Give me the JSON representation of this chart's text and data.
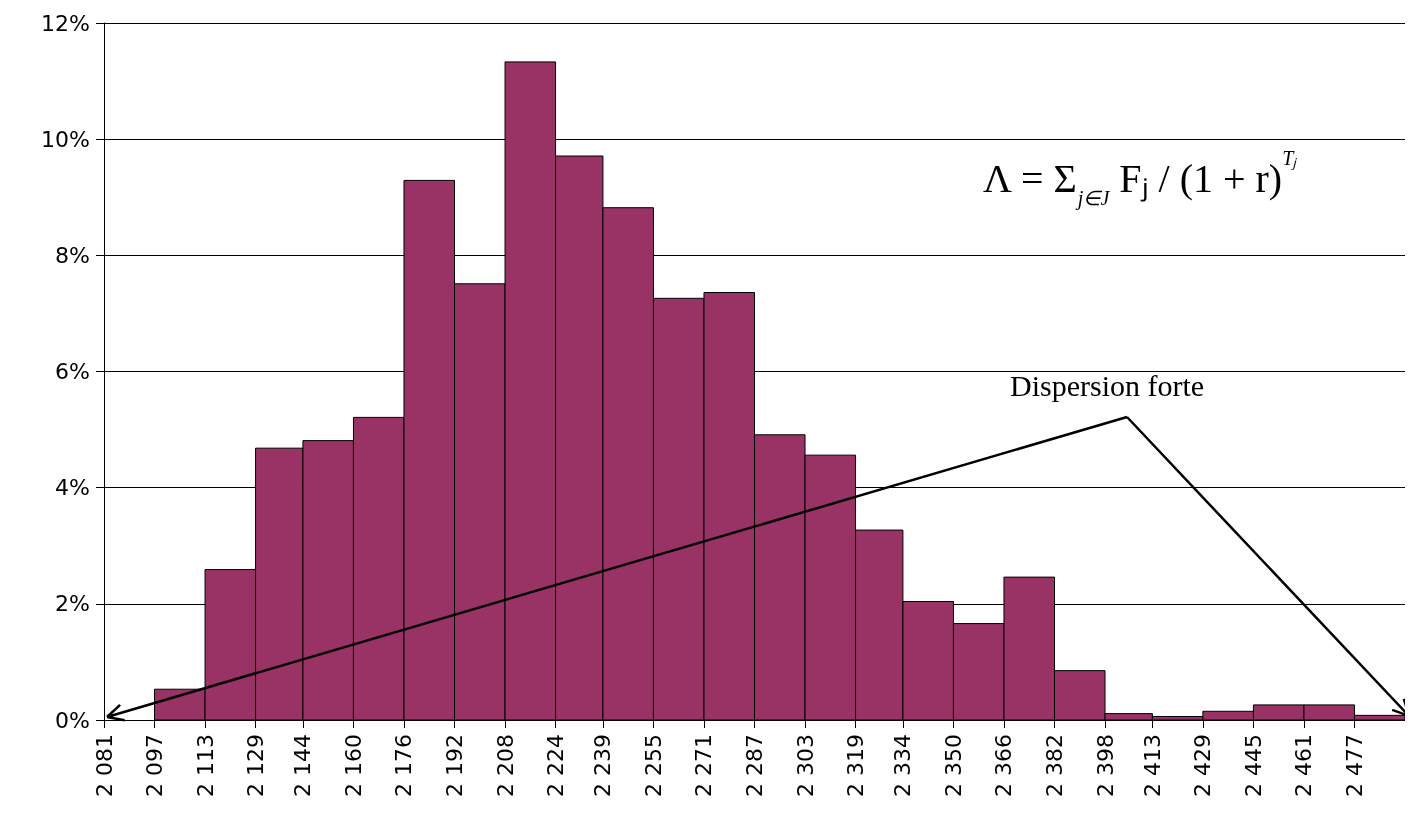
{
  "chart_data": {
    "type": "histogram",
    "bins": [
      2097,
      2113,
      2129,
      2144,
      2160,
      2176,
      2192,
      2208,
      2224,
      2239,
      2255,
      2271,
      2287,
      2303,
      2319,
      2334,
      2350,
      2366,
      2382,
      2398,
      2413,
      2429,
      2445,
      2461,
      2477,
      2493
    ],
    "values": [
      0.53,
      2.59,
      4.68,
      4.81,
      5.21,
      9.29,
      7.51,
      11.33,
      9.71,
      8.82,
      7.26,
      7.36,
      4.91,
      4.56,
      3.27,
      2.04,
      1.66,
      2.46,
      0.85,
      0.11,
      0.06,
      0.15,
      0.26,
      0.26,
      0.08
    ],
    "color": "#993366",
    "xlim": [
      2081,
      2493
    ],
    "xticks": [
      {
        "value": 2081,
        "label": "2 081"
      },
      {
        "value": 2097,
        "label": "2 097"
      },
      {
        "value": 2113,
        "label": "2 113"
      },
      {
        "value": 2129,
        "label": "2 129"
      },
      {
        "value": 2144,
        "label": "2 144"
      },
      {
        "value": 2160,
        "label": "2 160"
      },
      {
        "value": 2176,
        "label": "2 176"
      },
      {
        "value": 2192,
        "label": "2 192"
      },
      {
        "value": 2208,
        "label": "2 208"
      },
      {
        "value": 2224,
        "label": "2 224"
      },
      {
        "value": 2239,
        "label": "2 239"
      },
      {
        "value": 2255,
        "label": "2 255"
      },
      {
        "value": 2271,
        "label": "2 271"
      },
      {
        "value": 2287,
        "label": "2 287"
      },
      {
        "value": 2303,
        "label": "2 303"
      },
      {
        "value": 2319,
        "label": "2 319"
      },
      {
        "value": 2334,
        "label": "2 334"
      },
      {
        "value": 2350,
        "label": "2 350"
      },
      {
        "value": 2366,
        "label": "2 366"
      },
      {
        "value": 2382,
        "label": "2 382"
      },
      {
        "value": 2398,
        "label": "2 398"
      },
      {
        "value": 2413,
        "label": "2 413"
      },
      {
        "value": 2429,
        "label": "2 429"
      },
      {
        "value": 2445,
        "label": "2 445"
      },
      {
        "value": 2461,
        "label": "2 461"
      },
      {
        "value": 2477,
        "label": "2 477"
      }
    ],
    "ylim": [
      0,
      12
    ],
    "yticks": [
      {
        "value": 0,
        "label": "0%"
      },
      {
        "value": 2,
        "label": "2%"
      },
      {
        "value": 4,
        "label": "4%"
      },
      {
        "value": 6,
        "label": "6%"
      },
      {
        "value": 8,
        "label": "8%"
      },
      {
        "value": 10,
        "label": "10%"
      },
      {
        "value": 12,
        "label": "12%"
      }
    ],
    "grid": "y",
    "annotations": [
      "Λ = Σ$_{j∈J}$ Fⱼ / (1 + r)$^{Tⱼ}$",
      "Dispersion forte"
    ]
  }
}
